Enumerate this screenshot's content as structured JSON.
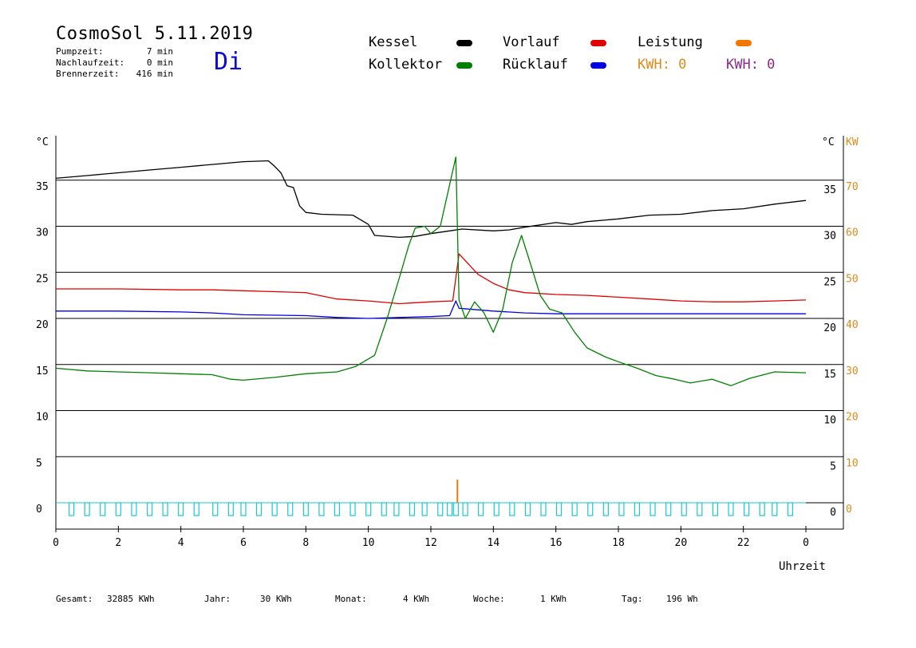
{
  "header": {
    "title": "CosmoSol 5.11.2019",
    "day": "Di",
    "stats": [
      {
        "label": "Pumpzeit:",
        "value": "7 min"
      },
      {
        "label": "Nachlaufzeit:",
        "value": "0 min"
      },
      {
        "label": "Brennerzeit:",
        "value": "416 min"
      }
    ]
  },
  "legend": {
    "items": [
      {
        "label": "Kessel",
        "color": "#000000"
      },
      {
        "label": "Vorlauf",
        "color": "#e00000"
      },
      {
        "label": "Leistung",
        "color": "#f07800"
      },
      {
        "label": "Kollektor",
        "color": "#008000"
      },
      {
        "label": "Rücklauf",
        "color": "#0000e0"
      }
    ],
    "kwh": [
      {
        "text": "KWH: 0",
        "color": "#e08a1a"
      },
      {
        "text": "KWH: 0",
        "color": "#8a2a8a"
      }
    ]
  },
  "footer": {
    "items": [
      {
        "label": "Gesamt:",
        "value": "32885 KWh"
      },
      {
        "label": "Jahr:",
        "value": "30 KWh"
      },
      {
        "label": "Monat:",
        "value": "4 KWh"
      },
      {
        "label": "Woche:",
        "value": "1 KWh"
      },
      {
        "label": "Tag:",
        "value": "196 Wh"
      }
    ]
  },
  "chart_data": {
    "type": "line",
    "xlabel": "Uhrzeit",
    "ylabel_left": "°C",
    "ylabel_right_temp": "°C",
    "ylabel_right_power": "KW",
    "xlim": [
      0,
      24
    ],
    "ylim": [
      -3,
      40
    ],
    "x_ticks": [
      "0",
      "2",
      "4",
      "6",
      "8",
      "10",
      "12",
      "14",
      "16",
      "18",
      "20",
      "22",
      "0"
    ],
    "y_ticks": [
      0,
      5,
      10,
      15,
      20,
      25,
      30,
      35
    ],
    "kw_ticks": [
      0,
      10,
      20,
      30,
      40,
      50,
      60,
      70
    ],
    "colors": {
      "grid": "#000000",
      "axis": "#000000",
      "kw": "#e08a1a",
      "pump": "#19c8d2"
    },
    "series": [
      {
        "name": "Kessel",
        "color": "#000000",
        "x": [
          0,
          1,
          2,
          3,
          4,
          5,
          6,
          6.8,
          7.0,
          7.2,
          7.4,
          7.6,
          7.8,
          8.0,
          8.5,
          9.5,
          10.0,
          10.2,
          11,
          11.5,
          12,
          12.6,
          13,
          14,
          14.5,
          15,
          16,
          16.5,
          17,
          18,
          19,
          20,
          21,
          22,
          23,
          24
        ],
        "y": [
          35.2,
          35.5,
          35.8,
          36.1,
          36.4,
          36.7,
          37.0,
          37.1,
          36.5,
          35.8,
          34.4,
          34.2,
          32.2,
          31.5,
          31.3,
          31.2,
          30.2,
          29.0,
          28.8,
          28.9,
          29.2,
          29.5,
          29.7,
          29.5,
          29.6,
          29.9,
          30.4,
          30.2,
          30.5,
          30.8,
          31.2,
          31.3,
          31.7,
          31.9,
          32.4,
          32.8
        ]
      },
      {
        "name": "Vorlauf",
        "color": "#e00000",
        "x": [
          0,
          2,
          4,
          5,
          6,
          7,
          8,
          9,
          10,
          11,
          12,
          12.7,
          12.9,
          13.5,
          14,
          14.5,
          15,
          16,
          17,
          18,
          19,
          20,
          21,
          22,
          23,
          24
        ],
        "y": [
          23.2,
          23.2,
          23.1,
          23.1,
          23.0,
          22.9,
          22.8,
          22.1,
          21.9,
          21.6,
          21.8,
          21.9,
          27.0,
          24.8,
          23.8,
          23.1,
          22.8,
          22.6,
          22.5,
          22.3,
          22.1,
          21.9,
          21.8,
          21.8,
          21.9,
          22.0
        ]
      },
      {
        "name": "Rücklauf",
        "color": "#0000e0",
        "x": [
          0,
          2,
          4,
          5,
          6,
          8,
          9,
          10,
          11,
          12,
          12.6,
          12.8,
          12.9,
          14,
          15,
          16,
          17,
          18,
          20,
          22,
          24
        ],
        "y": [
          20.8,
          20.8,
          20.7,
          20.6,
          20.4,
          20.3,
          20.1,
          20.0,
          20.1,
          20.2,
          20.3,
          21.9,
          21.1,
          20.8,
          20.6,
          20.5,
          20.5,
          20.5,
          20.5,
          20.5,
          20.5
        ]
      },
      {
        "name": "Kollektor",
        "color": "#008000",
        "x": [
          0,
          1,
          2,
          3,
          4,
          5,
          5.6,
          6,
          7,
          8,
          9,
          9.6,
          10.2,
          10.6,
          11,
          11.3,
          11.5,
          11.8,
          12,
          12.3,
          12.5,
          12.8,
          12.9,
          13.1,
          13.4,
          13.7,
          14,
          14.3,
          14.6,
          14.9,
          15.2,
          15.5,
          15.8,
          16.2,
          16.6,
          17,
          17.6,
          18,
          18.6,
          19.2,
          19.8,
          20.3,
          21,
          21.6,
          22.2,
          23,
          24
        ],
        "y": [
          14.6,
          14.3,
          14.2,
          14.1,
          14.0,
          13.9,
          13.4,
          13.3,
          13.6,
          14.0,
          14.2,
          14.8,
          16.0,
          20.0,
          24.5,
          28.0,
          29.8,
          30.0,
          29.2,
          30.0,
          33.0,
          37.5,
          22.0,
          20.0,
          21.8,
          20.6,
          18.5,
          21.0,
          26.0,
          29.0,
          25.8,
          22.5,
          21.0,
          20.6,
          18.5,
          16.8,
          15.8,
          15.3,
          14.6,
          13.8,
          13.4,
          13.0,
          13.4,
          12.7,
          13.5,
          14.2,
          14.1
        ]
      }
    ],
    "power": {
      "name": "Leistung",
      "color": "#f07800",
      "x": [
        12.85
      ],
      "kw": [
        5
      ]
    },
    "pump_marks_x": [
      0.5,
      1.0,
      1.5,
      2.0,
      2.5,
      3.0,
      3.5,
      4.0,
      4.5,
      5.1,
      5.6,
      6.0,
      6.5,
      7.0,
      7.5,
      8.0,
      8.5,
      9.0,
      9.5,
      10.0,
      10.5,
      10.9,
      11.4,
      11.8,
      12.3,
      12.6,
      12.8,
      13.1,
      13.6,
      14.1,
      14.6,
      15.1,
      15.6,
      16.1,
      16.6,
      17.1,
      17.6,
      18.1,
      18.6,
      19.1,
      19.6,
      20.1,
      20.6,
      21.1,
      21.6,
      22.1,
      22.6,
      23.0,
      23.5
    ]
  }
}
